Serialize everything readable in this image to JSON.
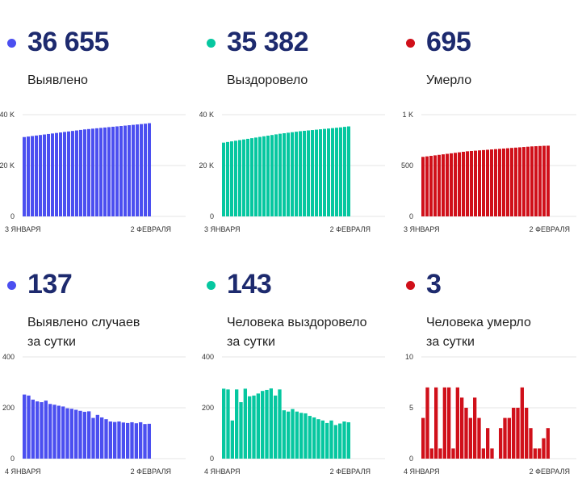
{
  "colors": {
    "detected": "#4b4ff0",
    "recovered": "#06c7a0",
    "deaths": "#d0101a"
  },
  "cards": [
    {
      "value": "36 655",
      "label1": "Выявлено",
      "label2": ""
    },
    {
      "value": "35 382",
      "label1": "Выздоровело",
      "label2": ""
    },
    {
      "value": "695",
      "label1": "Умерло",
      "label2": ""
    },
    {
      "value": "137",
      "label1": "Выявлено случаев",
      "label2": "за сутки"
    },
    {
      "value": "143",
      "label1": "Человека выздоровело",
      "label2": "за сутки"
    },
    {
      "value": "3",
      "label1": "Человека умерло",
      "label2": "за сутки"
    }
  ],
  "chart_data": [
    {
      "type": "bar",
      "title": "Выявлено",
      "y_ticks": [
        {
          "v": 0,
          "label": "0"
        },
        {
          "v": 20000,
          "label": "20 K"
        },
        {
          "v": 40000,
          "label": "40 K"
        }
      ],
      "ylim": [
        0,
        40000
      ],
      "x_start_label": "3 ЯНВАРЯ",
      "x_end_label": "2 ФЕВРАЛЯ",
      "values": [
        31200,
        31400,
        31600,
        31800,
        32000,
        32200,
        32400,
        32600,
        32800,
        33000,
        33200,
        33400,
        33600,
        33800,
        34000,
        34200,
        34350,
        34500,
        34650,
        34800,
        34950,
        35100,
        35250,
        35400,
        35550,
        35700,
        35850,
        36000,
        36150,
        36300,
        36450,
        36655
      ]
    },
    {
      "type": "bar",
      "title": "Выздоровело",
      "y_ticks": [
        {
          "v": 0,
          "label": "0"
        },
        {
          "v": 20000,
          "label": "20 K"
        },
        {
          "v": 40000,
          "label": "40 K"
        }
      ],
      "ylim": [
        0,
        40000
      ],
      "x_start_label": "3 ЯНВАРЯ",
      "x_end_label": "2 ФЕВРАЛЯ",
      "values": [
        29000,
        29250,
        29500,
        29750,
        30000,
        30250,
        30500,
        30750,
        31000,
        31250,
        31500,
        31750,
        32000,
        32250,
        32500,
        32700,
        32900,
        33100,
        33300,
        33500,
        33650,
        33800,
        33950,
        34100,
        34250,
        34400,
        34550,
        34700,
        34850,
        35000,
        35200,
        35382
      ]
    },
    {
      "type": "bar",
      "title": "Умерло",
      "y_ticks": [
        {
          "v": 0,
          "label": "0"
        },
        {
          "v": 500,
          "label": "500"
        },
        {
          "v": 1000,
          "label": "1 K"
        }
      ],
      "ylim": [
        0,
        1000
      ],
      "x_start_label": "3 ЯНВАРЯ",
      "x_end_label": "2 ФЕВРАЛЯ",
      "values": [
        585,
        590,
        595,
        600,
        605,
        610,
        615,
        620,
        625,
        630,
        635,
        640,
        643,
        646,
        649,
        652,
        655,
        658,
        661,
        664,
        667,
        670,
        673,
        676,
        679,
        682,
        685,
        688,
        690,
        692,
        694,
        695
      ]
    },
    {
      "type": "bar",
      "title": "Выявлено случаев за сутки",
      "y_ticks": [
        {
          "v": 0,
          "label": "0"
        },
        {
          "v": 200,
          "label": "200"
        },
        {
          "v": 400,
          "label": "400"
        }
      ],
      "ylim": [
        0,
        400
      ],
      "x_start_label": "4 ЯНВАРЯ",
      "x_end_label": "2 ФЕВРАЛЯ",
      "values": [
        252,
        248,
        232,
        225,
        222,
        228,
        215,
        212,
        208,
        205,
        198,
        196,
        192,
        188,
        184,
        186,
        160,
        172,
        162,
        155,
        146,
        144,
        146,
        142,
        140,
        143,
        139,
        143,
        136,
        137
      ]
    },
    {
      "type": "bar",
      "title": "Человека выздоровело за сутки",
      "y_ticks": [
        {
          "v": 0,
          "label": "0"
        },
        {
          "v": 200,
          "label": "200"
        },
        {
          "v": 400,
          "label": "400"
        }
      ],
      "ylim": [
        0,
        400
      ],
      "x_start_label": "4 ЯНВАРЯ",
      "x_end_label": "2 ФЕВРАЛЯ",
      "values": [
        275,
        272,
        150,
        272,
        222,
        275,
        245,
        248,
        256,
        266,
        270,
        276,
        248,
        272,
        190,
        185,
        195,
        185,
        180,
        178,
        168,
        162,
        155,
        150,
        140,
        150,
        132,
        138,
        146,
        143
      ]
    },
    {
      "type": "bar",
      "title": "Человека умерло за сутки",
      "y_ticks": [
        {
          "v": 0,
          "label": "0"
        },
        {
          "v": 5,
          "label": "5"
        },
        {
          "v": 10,
          "label": "10"
        }
      ],
      "ylim": [
        0,
        10
      ],
      "x_start_label": "4 ЯНВАРЯ",
      "x_end_label": "2 ФЕВРАЛЯ",
      "values": [
        4,
        7,
        1,
        7,
        1,
        7,
        7,
        1,
        7,
        6,
        5,
        4,
        6,
        4,
        1,
        3,
        1,
        0,
        3,
        4,
        4,
        5,
        5,
        7,
        5,
        3,
        1,
        1,
        2,
        3
      ]
    }
  ]
}
